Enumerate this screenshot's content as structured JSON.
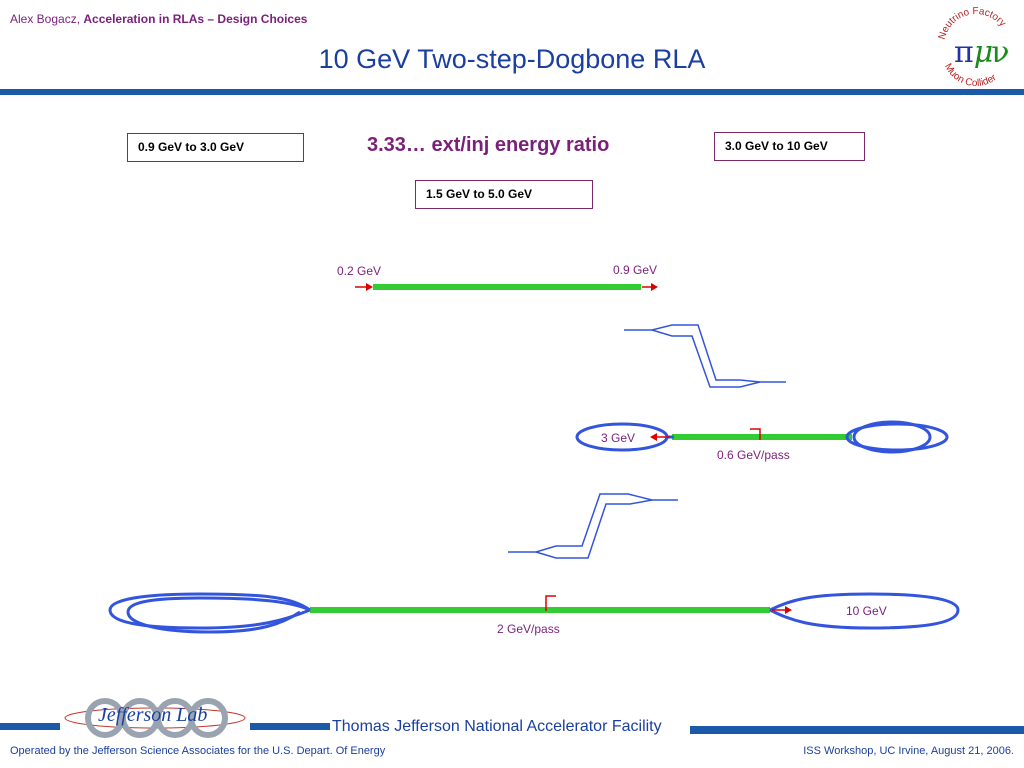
{
  "header": {
    "author": "Alex Bogacz,",
    "topic": "Acceleration in RLAs – Design Choices",
    "title": "10 GeV Two-step-Dogbone RLA"
  },
  "logo_nf": {
    "top_text": "Neutrino Factory",
    "bottom_text": "Muon Collider",
    "symbols": "πμν"
  },
  "boxes": {
    "left": "0.9 GeV to 3.0 GeV",
    "right": "3.0 GeV to 10 GeV",
    "center": "1.5 GeV to 5.0 GeV"
  },
  "ratio_label": "3.33… ext/inj energy ratio",
  "linac": {
    "in_label": "0.2 GeV",
    "out_label": "0.9 GeV"
  },
  "rla1": {
    "exit_label": "3 GeV",
    "pass_label": "0.6 GeV/pass"
  },
  "rla2": {
    "exit_label": "10 GeV",
    "pass_label": "2 GeV/pass"
  },
  "footer": {
    "facility": "Thomas Jefferson National Accelerator Facility",
    "lab_logo": "Jefferson Lab",
    "operated_by": "Operated by the Jefferson Science Associates for the U.S. Depart. Of Energy",
    "event": "ISS Workshop, UC Irvine,  August 21, 2006."
  },
  "colors": {
    "linac_green": "#33cc33",
    "arc_blue": "#3355dd",
    "arrow_red": "#dd0000",
    "title_blue": "#1a3fa0",
    "label_purple": "#7a1f7a"
  }
}
